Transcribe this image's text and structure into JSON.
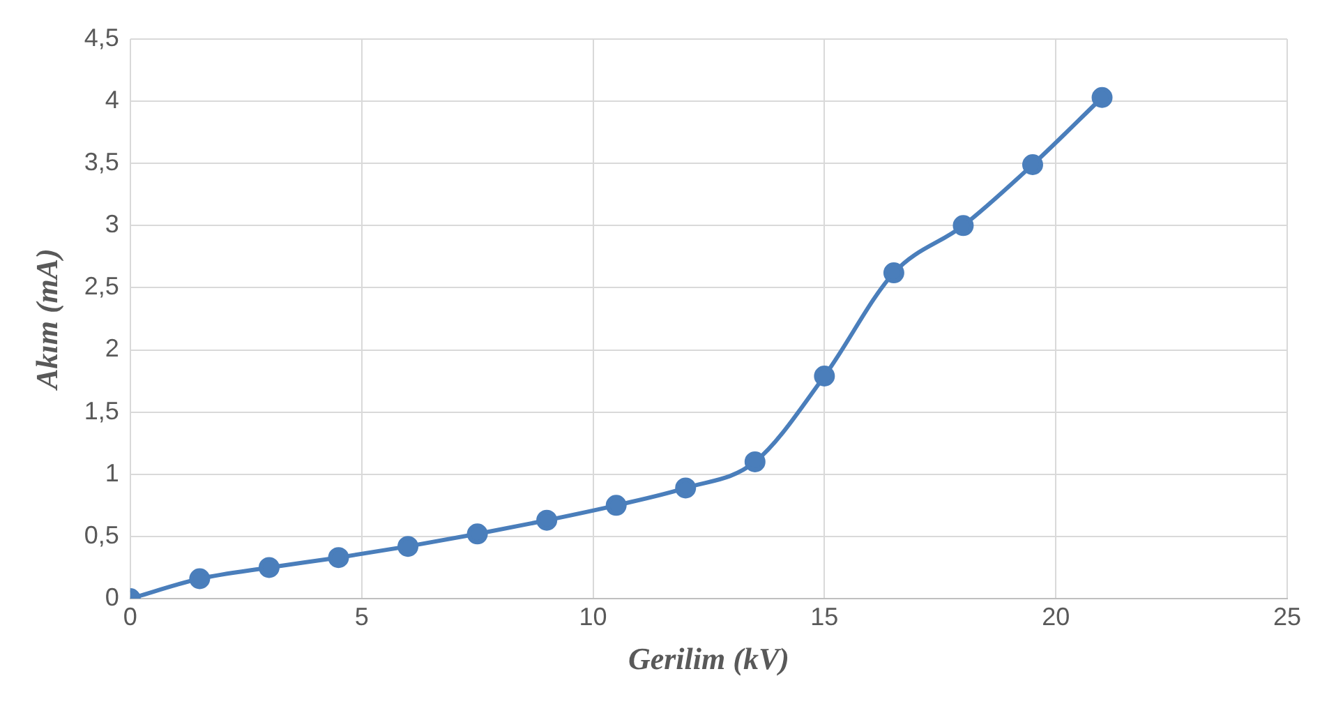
{
  "chart_data": {
    "type": "line",
    "xlabel": "Gerilim (kV)",
    "ylabel": "Akım (mA)",
    "x": [
      0,
      1.5,
      3,
      4.5,
      6,
      7.5,
      9,
      10.5,
      12,
      13.5,
      15,
      16.5,
      18,
      19.5,
      21
    ],
    "series": [
      {
        "color": "#4a7ebb",
        "values": [
          0,
          0.16,
          0.25,
          0.33,
          0.42,
          0.52,
          0.63,
          0.75,
          0.89,
          1.1,
          1.79,
          2.62,
          3.0,
          3.49,
          4.03
        ]
      }
    ],
    "xlim": [
      0,
      25
    ],
    "xticks": [
      0,
      5,
      10,
      15,
      20,
      25
    ],
    "ylim": [
      0,
      4.5
    ],
    "yticks": [
      {
        "value": 0,
        "label": "0"
      },
      {
        "value": 0.5,
        "label": "0,5"
      },
      {
        "value": 1,
        "label": "1"
      },
      {
        "value": 1.5,
        "label": "1,5"
      },
      {
        "value": 2,
        "label": "2"
      },
      {
        "value": 2.5,
        "label": "2,5"
      },
      {
        "value": 3,
        "label": "3"
      },
      {
        "value": 3.5,
        "label": "3,5"
      },
      {
        "value": 4,
        "label": "4"
      },
      {
        "value": 4.5,
        "label": "4,5"
      }
    ],
    "grid": true,
    "legend": false,
    "marker": "circle",
    "line_style": "solid"
  }
}
